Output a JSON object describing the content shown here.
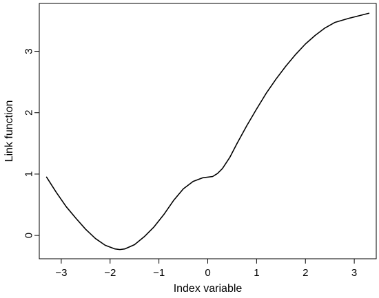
{
  "chart_data": {
    "type": "line",
    "title": "",
    "xlabel": "Index variable",
    "ylabel": "Link function",
    "xlim": [
      -3.45,
      3.45
    ],
    "ylim": [
      -0.38,
      3.78
    ],
    "x_ticks": [
      -3,
      -2,
      -1,
      0,
      1,
      2,
      3
    ],
    "x_tick_labels": [
      "−3",
      "−2",
      "−1",
      "0",
      "1",
      "2",
      "3"
    ],
    "y_ticks": [
      0,
      1,
      2,
      3
    ],
    "y_tick_labels": [
      "0",
      "1",
      "2",
      "3"
    ],
    "grid": false,
    "legend": "none",
    "series": [
      {
        "color": "#000000",
        "x": [
          -3.3,
          -3.1,
          -2.9,
          -2.7,
          -2.5,
          -2.3,
          -2.1,
          -1.9,
          -1.8,
          -1.7,
          -1.5,
          -1.3,
          -1.1,
          -0.9,
          -0.7,
          -0.5,
          -0.3,
          -0.1,
          0.0,
          0.1,
          0.2,
          0.3,
          0.45,
          0.6,
          0.8,
          1.0,
          1.2,
          1.4,
          1.6,
          1.8,
          2.0,
          2.2,
          2.4,
          2.6,
          2.9,
          3.3
        ],
        "y": [
          0.95,
          0.7,
          0.47,
          0.28,
          0.1,
          -0.05,
          -0.16,
          -0.22,
          -0.23,
          -0.22,
          -0.15,
          -0.02,
          0.14,
          0.34,
          0.57,
          0.76,
          0.88,
          0.94,
          0.95,
          0.96,
          1.01,
          1.09,
          1.27,
          1.5,
          1.79,
          2.06,
          2.32,
          2.55,
          2.76,
          2.95,
          3.12,
          3.26,
          3.38,
          3.47,
          3.54,
          3.62
        ]
      }
    ]
  }
}
